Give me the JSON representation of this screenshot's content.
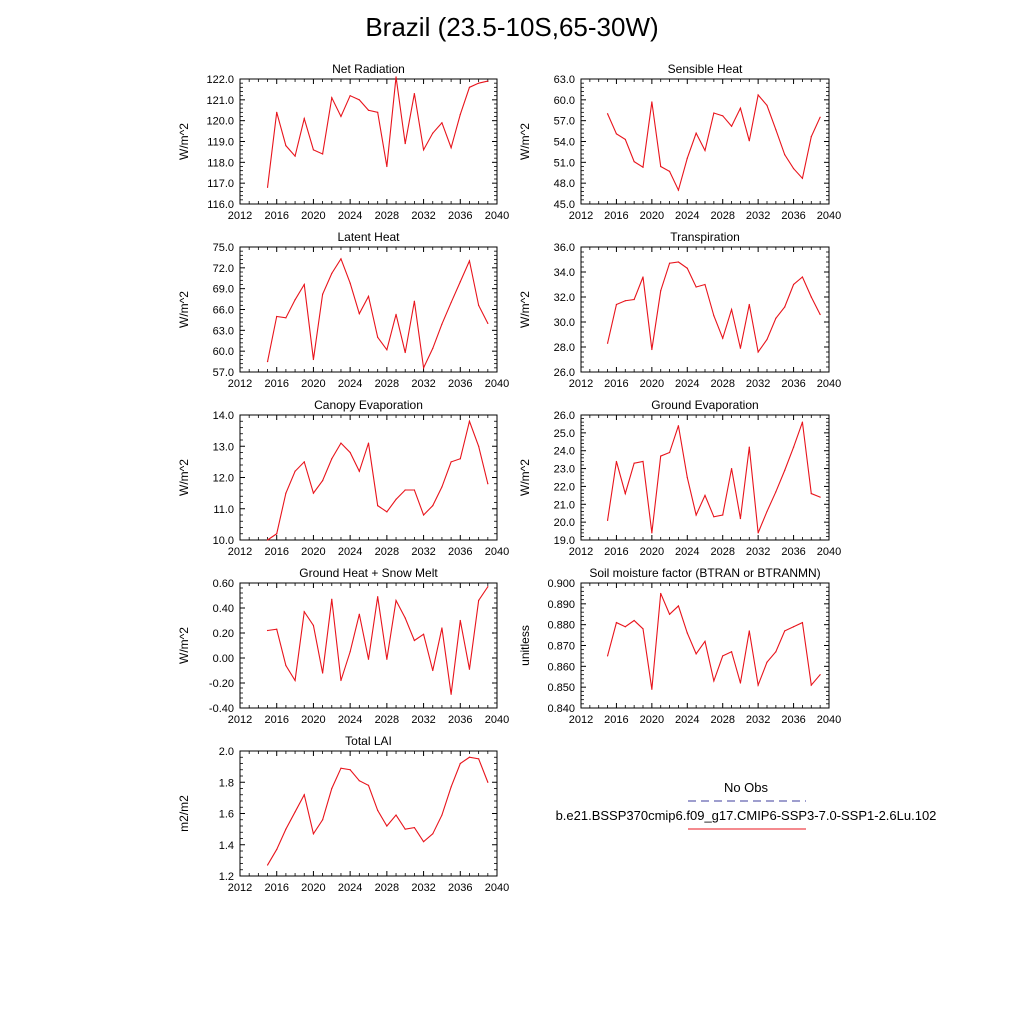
{
  "page": {
    "title": "Brazil (23.5-10S,65-30W)"
  },
  "chart_data": [
    {
      "type": "line",
      "title": "Net Radiation",
      "ylabel": "W/m^2",
      "xlim": [
        2012,
        2040
      ],
      "xticks": [
        "2012",
        "2016",
        "2020",
        "2024",
        "2028",
        "2032",
        "2036",
        "2040"
      ],
      "ylim": [
        116.0,
        122.0
      ],
      "yticks": [
        "116.0",
        "117.0",
        "118.0",
        "119.0",
        "120.0",
        "121.0",
        "122.0"
      ],
      "x": [
        2015,
        2016,
        2017,
        2018,
        2019,
        2020,
        2021,
        2022,
        2023,
        2024,
        2025,
        2026,
        2027,
        2028,
        2029,
        2030,
        2031,
        2032,
        2033,
        2034,
        2035,
        2036,
        2037,
        2038,
        2039
      ],
      "series": [
        {
          "name": "b.e21.BSSP370cmip6.f09_g17.CMIP6-SSP3-7.0-SSP1-2.6Lu.102",
          "color": "#e8141c",
          "values": [
            116.8,
            120.4,
            118.8,
            118.3,
            120.1,
            118.6,
            118.4,
            121.1,
            120.2,
            121.2,
            121.0,
            120.5,
            120.4,
            117.8,
            122.1,
            118.9,
            121.3,
            118.6,
            119.4,
            119.9,
            118.7,
            120.3,
            121.6,
            121.8,
            121.9
          ]
        }
      ]
    },
    {
      "type": "line",
      "title": "Sensible Heat",
      "ylabel": "W/m^2",
      "xlim": [
        2012,
        2040
      ],
      "xticks": [
        "2012",
        "2016",
        "2020",
        "2024",
        "2028",
        "2032",
        "2036",
        "2040"
      ],
      "ylim": [
        45.0,
        63.0
      ],
      "yticks": [
        "45.0",
        "48.0",
        "51.0",
        "54.0",
        "57.0",
        "60.0",
        "63.0"
      ],
      "x": [
        2015,
        2016,
        2017,
        2018,
        2019,
        2020,
        2021,
        2022,
        2023,
        2024,
        2025,
        2026,
        2027,
        2028,
        2029,
        2030,
        2031,
        2032,
        2033,
        2034,
        2035,
        2036,
        2037,
        2038,
        2039
      ],
      "series": [
        {
          "name": "b.e21.BSSP370cmip6.f09_g17.CMIP6-SSP3-7.0-SSP1-2.6Lu.102",
          "color": "#e8141c",
          "values": [
            58.0,
            55.1,
            54.3,
            51.1,
            50.3,
            59.7,
            50.4,
            49.7,
            47.0,
            51.6,
            55.2,
            52.7,
            58.1,
            57.7,
            56.2,
            58.8,
            54.1,
            60.7,
            59.2,
            55.7,
            52.1,
            50.1,
            48.7,
            54.7,
            57.5
          ]
        }
      ]
    },
    {
      "type": "line",
      "title": "Latent Heat",
      "ylabel": "W/m^2",
      "xlim": [
        2012,
        2040
      ],
      "xticks": [
        "2012",
        "2016",
        "2020",
        "2024",
        "2028",
        "2032",
        "2036",
        "2040"
      ],
      "ylim": [
        57.0,
        75.0
      ],
      "yticks": [
        "57.0",
        "60.0",
        "63.0",
        "66.0",
        "69.0",
        "72.0",
        "75.0"
      ],
      "x": [
        2015,
        2016,
        2017,
        2018,
        2019,
        2020,
        2021,
        2022,
        2023,
        2024,
        2025,
        2026,
        2027,
        2028,
        2029,
        2030,
        2031,
        2032,
        2033,
        2034,
        2035,
        2036,
        2037,
        2038,
        2039
      ],
      "series": [
        {
          "name": "b.e21.BSSP370cmip6.f09_g17.CMIP6-SSP3-7.0-SSP1-2.6Lu.102",
          "color": "#e8141c",
          "values": [
            58.5,
            65.0,
            64.8,
            67.4,
            69.6,
            58.8,
            68.2,
            71.2,
            73.3,
            69.8,
            65.4,
            67.9,
            62.0,
            60.2,
            65.3,
            59.8,
            67.2,
            57.6,
            60.4,
            63.9,
            67.0,
            70.0,
            73.0,
            66.6,
            64.0
          ]
        }
      ]
    },
    {
      "type": "line",
      "title": "Transpiration",
      "ylabel": "W/m^2",
      "xlim": [
        2012,
        2040
      ],
      "xticks": [
        "2012",
        "2016",
        "2020",
        "2024",
        "2028",
        "2032",
        "2036",
        "2040"
      ],
      "ylim": [
        26.0,
        36.0
      ],
      "yticks": [
        "26.0",
        "28.0",
        "30.0",
        "32.0",
        "34.0",
        "36.0"
      ],
      "x": [
        2015,
        2016,
        2017,
        2018,
        2019,
        2020,
        2021,
        2022,
        2023,
        2024,
        2025,
        2026,
        2027,
        2028,
        2029,
        2030,
        2031,
        2032,
        2033,
        2034,
        2035,
        2036,
        2037,
        2038,
        2039
      ],
      "series": [
        {
          "name": "b.e21.BSSP370cmip6.f09_g17.CMIP6-SSP3-7.0-SSP1-2.6Lu.102",
          "color": "#e8141c",
          "values": [
            28.3,
            31.4,
            31.7,
            31.8,
            33.6,
            27.8,
            32.5,
            34.7,
            34.8,
            34.3,
            32.8,
            33.0,
            30.5,
            28.7,
            31.0,
            27.9,
            31.4,
            27.6,
            28.6,
            30.3,
            31.2,
            33.0,
            33.6,
            32.0,
            30.6
          ]
        }
      ]
    },
    {
      "type": "line",
      "title": "Canopy Evaporation",
      "ylabel": "W/m^2",
      "xlim": [
        2012,
        2040
      ],
      "xticks": [
        "2012",
        "2016",
        "2020",
        "2024",
        "2028",
        "2032",
        "2036",
        "2040"
      ],
      "ylim": [
        10.0,
        14.0
      ],
      "yticks": [
        "10.0",
        "11.0",
        "12.0",
        "13.0",
        "14.0"
      ],
      "x": [
        2015,
        2016,
        2017,
        2018,
        2019,
        2020,
        2021,
        2022,
        2023,
        2024,
        2025,
        2026,
        2027,
        2028,
        2029,
        2030,
        2031,
        2032,
        2033,
        2034,
        2035,
        2036,
        2037,
        2038,
        2039
      ],
      "series": [
        {
          "name": "b.e21.BSSP370cmip6.f09_g17.CMIP6-SSP3-7.0-SSP1-2.6Lu.102",
          "color": "#e8141c",
          "values": [
            10.0,
            10.2,
            11.5,
            12.2,
            12.5,
            11.5,
            11.9,
            12.6,
            13.1,
            12.8,
            12.2,
            13.1,
            11.1,
            10.9,
            11.3,
            11.6,
            11.6,
            10.8,
            11.1,
            11.7,
            12.5,
            12.6,
            13.8,
            13.0,
            11.8
          ]
        }
      ]
    },
    {
      "type": "line",
      "title": "Ground Evaporation",
      "ylabel": "W/m^2",
      "xlim": [
        2012,
        2040
      ],
      "xticks": [
        "2012",
        "2016",
        "2020",
        "2024",
        "2028",
        "2032",
        "2036",
        "2040"
      ],
      "ylim": [
        19.0,
        26.0
      ],
      "yticks": [
        "19.0",
        "20.0",
        "21.0",
        "22.0",
        "23.0",
        "24.0",
        "25.0",
        "26.0"
      ],
      "x": [
        2015,
        2016,
        2017,
        2018,
        2019,
        2020,
        2021,
        2022,
        2023,
        2024,
        2025,
        2026,
        2027,
        2028,
        2029,
        2030,
        2031,
        2032,
        2033,
        2034,
        2035,
        2036,
        2037,
        2038,
        2039
      ],
      "series": [
        {
          "name": "b.e21.BSSP370cmip6.f09_g17.CMIP6-SSP3-7.0-SSP1-2.6Lu.102",
          "color": "#e8141c",
          "values": [
            20.1,
            23.4,
            21.6,
            23.3,
            23.4,
            19.4,
            23.7,
            23.9,
            25.4,
            22.5,
            20.4,
            21.5,
            20.3,
            20.4,
            23.0,
            20.2,
            24.2,
            19.4,
            20.6,
            21.7,
            22.9,
            24.2,
            25.6,
            21.6,
            21.4
          ]
        }
      ]
    },
    {
      "type": "line",
      "title": "Ground Heat + Snow Melt",
      "ylabel": "W/m^2",
      "xlim": [
        2012,
        2040
      ],
      "xticks": [
        "2012",
        "2016",
        "2020",
        "2024",
        "2028",
        "2032",
        "2036",
        "2040"
      ],
      "ylim": [
        -0.4,
        0.6
      ],
      "yticks": [
        "-0.40",
        "-0.20",
        "0.00",
        "0.20",
        "0.40",
        "0.60"
      ],
      "x": [
        2015,
        2016,
        2017,
        2018,
        2019,
        2020,
        2021,
        2022,
        2023,
        2024,
        2025,
        2026,
        2027,
        2028,
        2029,
        2030,
        2031,
        2032,
        2033,
        2034,
        2035,
        2036,
        2037,
        2038,
        2039
      ],
      "series": [
        {
          "name": "b.e21.BSSP370cmip6.f09_g17.CMIP6-SSP3-7.0-SSP1-2.6Lu.102",
          "color": "#e8141c",
          "values": [
            0.22,
            0.23,
            -0.06,
            -0.18,
            0.37,
            0.26,
            -0.12,
            0.47,
            -0.18,
            0.05,
            0.35,
            -0.01,
            0.49,
            -0.01,
            0.46,
            0.32,
            0.14,
            0.19,
            -0.1,
            0.24,
            -0.29,
            0.3,
            -0.09,
            0.46,
            0.57
          ]
        }
      ]
    },
    {
      "type": "line",
      "title": "Soil moisture factor (BTRAN or BTRANMN)",
      "ylabel": "unitless",
      "xlim": [
        2012,
        2040
      ],
      "xticks": [
        "2012",
        "2016",
        "2020",
        "2024",
        "2028",
        "2032",
        "2036",
        "2040"
      ],
      "ylim": [
        0.84,
        0.9
      ],
      "yticks": [
        "0.840",
        "0.850",
        "0.860",
        "0.870",
        "0.880",
        "0.890",
        "0.900"
      ],
      "x": [
        2015,
        2016,
        2017,
        2018,
        2019,
        2020,
        2021,
        2022,
        2023,
        2024,
        2025,
        2026,
        2027,
        2028,
        2029,
        2030,
        2031,
        2032,
        2033,
        2034,
        2035,
        2036,
        2037,
        2038,
        2039
      ],
      "series": [
        {
          "name": "b.e21.BSSP370cmip6.f09_g17.CMIP6-SSP3-7.0-SSP1-2.6Lu.102",
          "color": "#e8141c",
          "values": [
            0.865,
            0.881,
            0.879,
            0.882,
            0.878,
            0.849,
            0.895,
            0.885,
            0.889,
            0.876,
            0.866,
            0.872,
            0.853,
            0.865,
            0.867,
            0.852,
            0.877,
            0.851,
            0.862,
            0.867,
            0.877,
            0.879,
            0.881,
            0.851,
            0.856
          ]
        }
      ]
    },
    {
      "type": "line",
      "title": "Total LAI",
      "ylabel": "m2/m2",
      "xlim": [
        2012,
        2040
      ],
      "xticks": [
        "2012",
        "2016",
        "2020",
        "2024",
        "2028",
        "2032",
        "2036",
        "2040"
      ],
      "ylim": [
        1.2,
        2.0
      ],
      "yticks": [
        "1.2",
        "1.4",
        "1.6",
        "1.8",
        "2.0"
      ],
      "x": [
        2015,
        2016,
        2017,
        2018,
        2019,
        2020,
        2021,
        2022,
        2023,
        2024,
        2025,
        2026,
        2027,
        2028,
        2029,
        2030,
        2031,
        2032,
        2033,
        2034,
        2035,
        2036,
        2037,
        2038,
        2039
      ],
      "series": [
        {
          "name": "b.e21.BSSP370cmip6.f09_g17.CMIP6-SSP3-7.0-SSP1-2.6Lu.102",
          "color": "#e8141c",
          "values": [
            1.27,
            1.37,
            1.5,
            1.61,
            1.72,
            1.47,
            1.56,
            1.76,
            1.89,
            1.88,
            1.81,
            1.78,
            1.62,
            1.52,
            1.59,
            1.5,
            1.51,
            1.42,
            1.47,
            1.59,
            1.77,
            1.92,
            1.96,
            1.95,
            1.8
          ]
        }
      ]
    }
  ],
  "legend": {
    "items": [
      {
        "label": "No Obs",
        "color": "#3d3d9e",
        "dash": true
      },
      {
        "label": "b.e21.BSSP370cmip6.f09_g17.CMIP6-SSP3-7.0-SSP1-2.6Lu.102",
        "color": "#e8141c",
        "dash": false
      }
    ]
  }
}
